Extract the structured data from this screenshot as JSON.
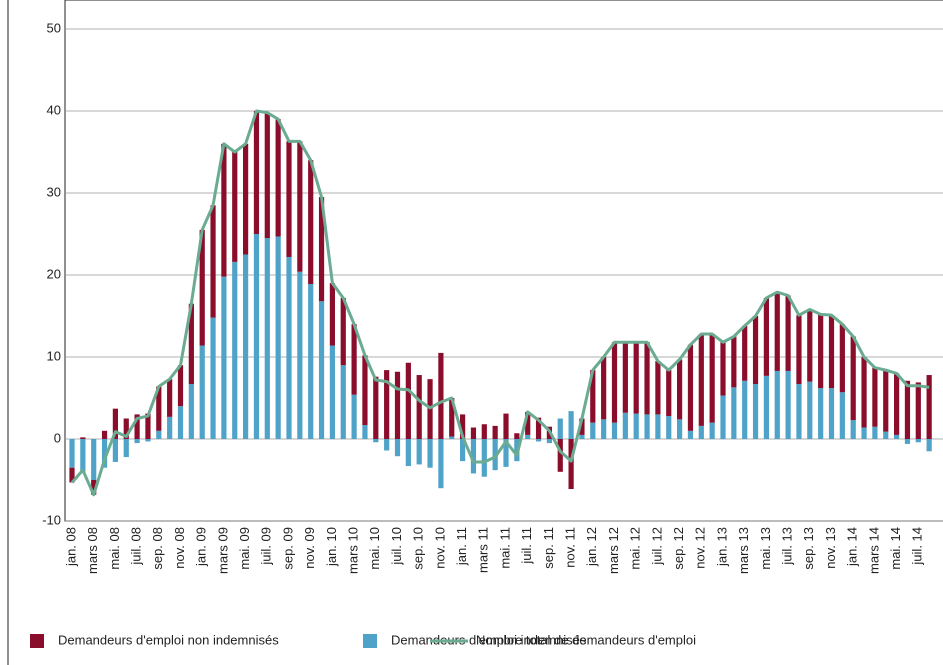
{
  "chart_data": {
    "type": "bar",
    "categories": [
      "jan. 08",
      null,
      "mars 08",
      null,
      "mai. 08",
      null,
      "juil. 08",
      null,
      "sep. 08",
      null,
      "nov. 08",
      null,
      "jan. 09",
      null,
      "mars 09",
      null,
      "mai. 09",
      null,
      "juil. 09",
      null,
      "sep. 09",
      null,
      "nov. 09",
      null,
      "jan. 10",
      null,
      "mars 10",
      null,
      "mai. 10",
      null,
      "juil. 10",
      null,
      "sep. 10",
      null,
      "nov. 10",
      null,
      "jan. 11",
      null,
      "mars 11",
      null,
      "mai. 11",
      null,
      "juil. 11",
      null,
      "sep. 11",
      null,
      "nov. 11",
      null,
      "jan. 12",
      null,
      "mars 12",
      null,
      "mai. 12",
      null,
      "juil. 12",
      null,
      "sep. 12",
      null,
      "nov. 12",
      null,
      "jan. 13",
      null,
      "mars 13",
      null,
      "mai. 13",
      null,
      "juil. 13",
      null,
      "sep. 13",
      null,
      "nov. 13",
      null,
      "jan. 14",
      null,
      "mars 14",
      null,
      "mai. 14",
      null,
      "juil. 14",
      null
    ],
    "series": [
      {
        "name": "Demandeurs d'emploi non indemnisés",
        "color": "#8b0d2c",
        "stack": true,
        "values": [
          -1.8,
          0.2,
          -1.8,
          1.0,
          3.7,
          2.5,
          3.0,
          3.1,
          5.4,
          4.6,
          5.0,
          9.8,
          14.1,
          13.7,
          16.2,
          13.4,
          13.5,
          15.0,
          15.3,
          14.3,
          14.1,
          15.9,
          15.1,
          12.7,
          7.6,
          8.2,
          8.6,
          8.5,
          7.6,
          8.4,
          8.2,
          9.3,
          7.8,
          7.3,
          10.5,
          4.7,
          3.0,
          1.4,
          1.8,
          1.6,
          3.1,
          0.7,
          2.8,
          2.6,
          1.5,
          -4.0,
          -6.1,
          2.0,
          6.4,
          7.6,
          9.8,
          8.6,
          8.7,
          8.8,
          6.5,
          5.6,
          7.3,
          10.5,
          11.2,
          10.8,
          6.5,
          6.2,
          6.7,
          8.3,
          9.5,
          9.6,
          9.2,
          8.4,
          8.8,
          9.0,
          8.9,
          8.3,
          10.2,
          8.6,
          7.2,
          7.5,
          7.5,
          7.1,
          6.9,
          7.8
        ]
      },
      {
        "name": "Demandeurs d'emploi indemnisés",
        "color": "#4fa3c8",
        "stack": true,
        "values": [
          -3.5,
          -4,
          -5,
          -3.5,
          -2.8,
          -2.2,
          -0.5,
          -0.3,
          1,
          2.7,
          4,
          6.7,
          11.4,
          14.8,
          19.8,
          21.6,
          22.5,
          25,
          24.5,
          24.7,
          22.2,
          20.4,
          18.9,
          16.8,
          11.4,
          9,
          5.4,
          1.7,
          -0.4,
          -1.4,
          -2.1,
          -3.3,
          -3.1,
          -3.5,
          -6,
          0.3,
          -2.7,
          -4.2,
          -4.6,
          -3.8,
          -3.4,
          -2.7,
          0.5,
          -0.3,
          -0.5,
          2.5,
          3.4,
          0.5,
          2,
          2.4,
          2,
          3.2,
          3.1,
          3,
          3,
          2.8,
          2.4,
          1,
          1.6,
          2,
          5.3,
          6.3,
          7.1,
          6.7,
          7.7,
          8.3,
          8.3,
          6.7,
          7,
          6.2,
          6.2,
          5.7,
          2.3,
          1.4,
          1.5,
          0.9,
          0.5,
          -0.6,
          -0.4,
          -1.5
        ]
      },
      {
        "name": "Nombre total de demandeurs d'emploi",
        "color": "#6aab91",
        "type": "line",
        "values": [
          -5.3,
          -3.8,
          -6.8,
          -2.5,
          0.9,
          0.3,
          2.5,
          2.8,
          6.4,
          7.3,
          9.0,
          16.5,
          25.5,
          28.5,
          36,
          35,
          36,
          40,
          39.8,
          39,
          36.3,
          36.3,
          34,
          29.5,
          19,
          17.2,
          14,
          10.2,
          7.2,
          7.0,
          6.1,
          6.0,
          4.7,
          3.8,
          4.5,
          5.0,
          0.3,
          -2.8,
          -2.8,
          -2.2,
          -0.3,
          -2.0,
          3.3,
          2.3,
          1.0,
          -1.5,
          -2.7,
          2.5,
          8.4,
          10,
          11.8,
          11.8,
          11.8,
          11.8,
          9.5,
          8.4,
          9.7,
          11.5,
          12.8,
          12.8,
          11.8,
          12.5,
          13.8,
          15,
          17.2,
          17.9,
          17.5,
          15.1,
          15.8,
          15.2,
          15.1,
          14,
          12.5,
          10,
          8.7,
          8.4,
          8,
          6.5,
          6.5,
          6.3
        ]
      }
    ],
    "ylim": [
      -10,
      50
    ],
    "yticks": [
      -10,
      0,
      10,
      20,
      30,
      40,
      50
    ],
    "grid": true,
    "legend": "bottom"
  }
}
